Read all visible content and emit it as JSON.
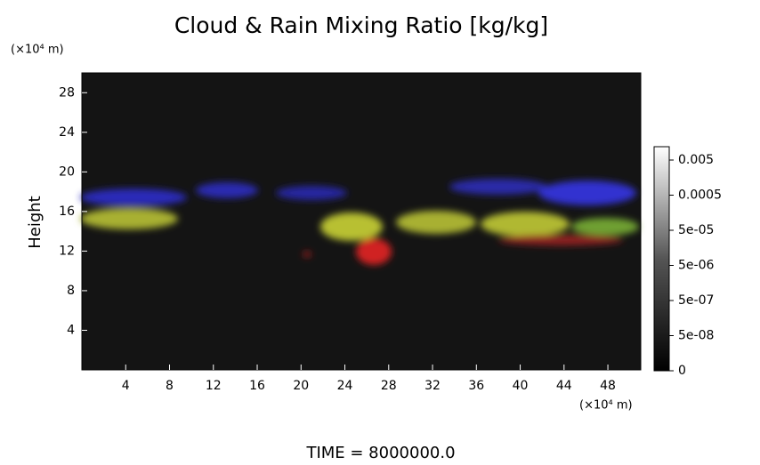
{
  "chart_data": {
    "type": "volume-render",
    "title": "Cloud & Rain Mixing Ratio [kg/kg]",
    "y_label": "Height",
    "y_unit": "(×10⁴ m)",
    "x_unit": "(×10⁴ m)",
    "xlim": [
      0,
      51
    ],
    "xticks": [
      4,
      8,
      12,
      16,
      20,
      24,
      28,
      32,
      36,
      40,
      44,
      48
    ],
    "ylim": [
      0,
      30
    ],
    "yticks": [
      4,
      8,
      12,
      16,
      20,
      24,
      28
    ],
    "colorbar_ticks": [
      0.005,
      0.0005,
      {
        "value": 5e-05,
        "label": "5e-05"
      },
      {
        "value": 5e-06,
        "label": "5e-06"
      },
      {
        "value": 5e-07,
        "label": "5e-07"
      },
      {
        "value": 5e-08,
        "label": "5e-08"
      },
      0
    ],
    "footer": "TIME = 8000000.0"
  }
}
